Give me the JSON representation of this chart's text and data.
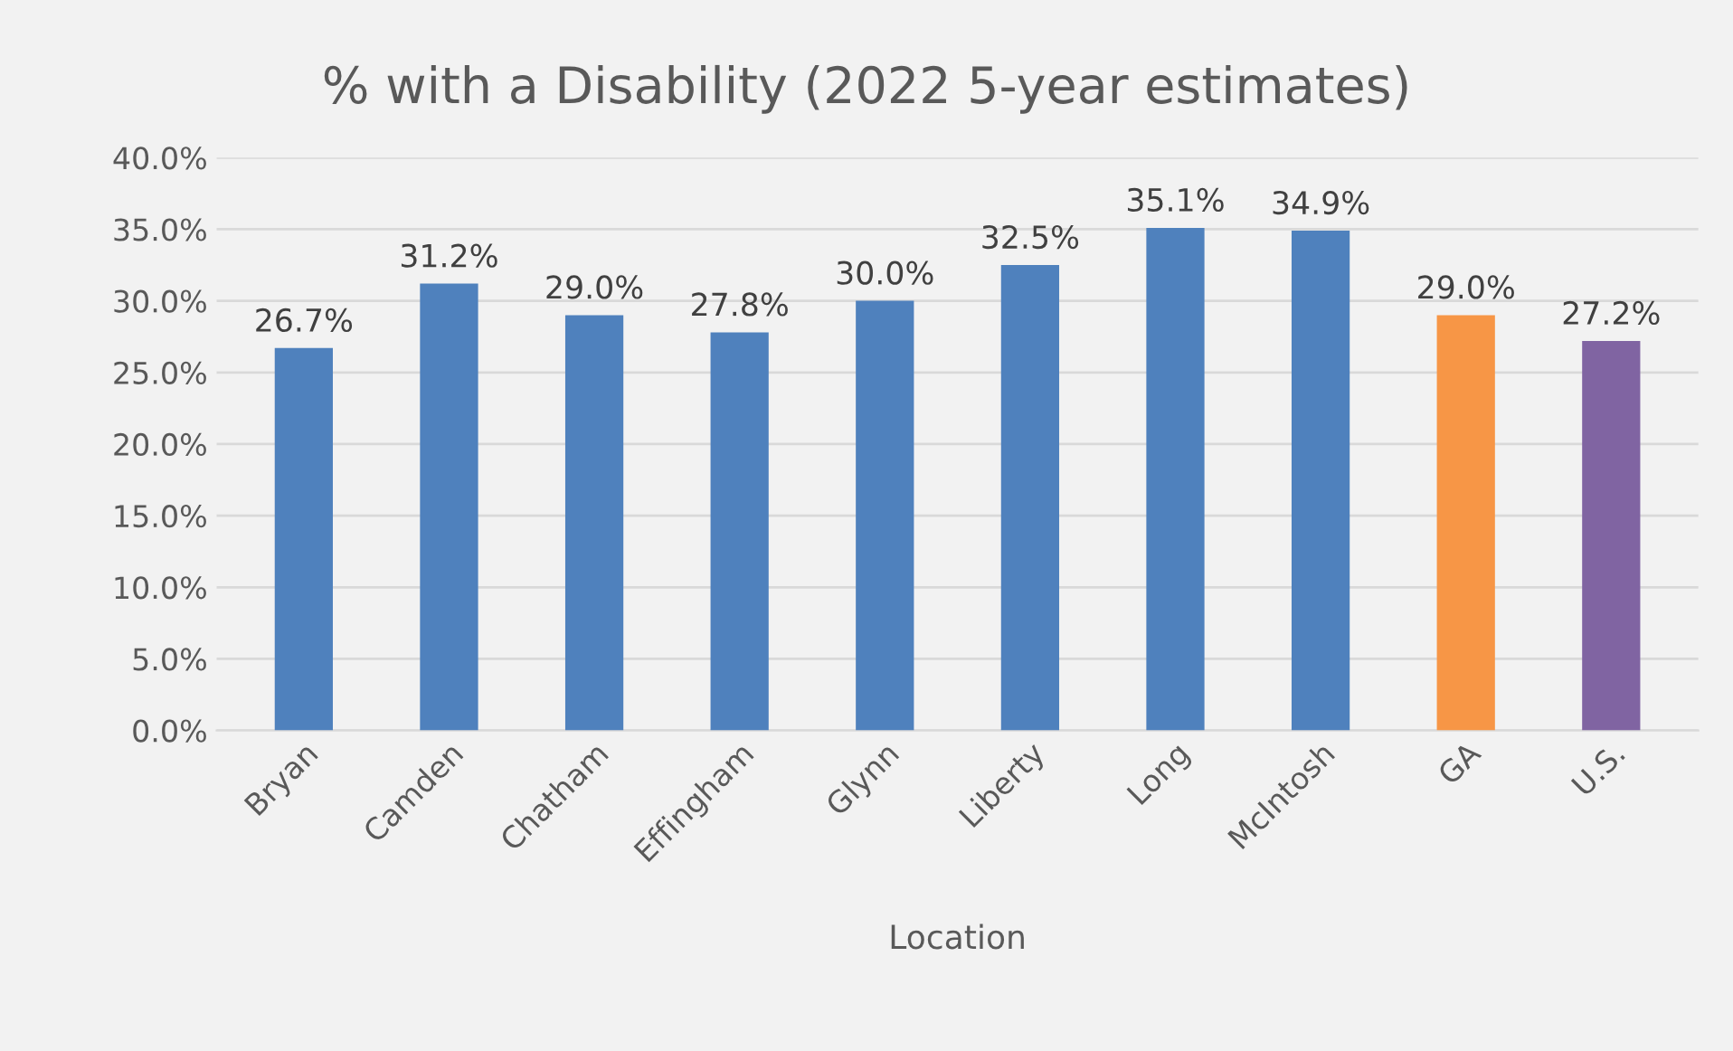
{
  "chart_data": {
    "type": "bar",
    "title": "% with a Disability (2022 5-year estimates)",
    "xlabel": "Location",
    "categories": [
      "Bryan",
      "Camden",
      "Chatham",
      "Effingham",
      "Glynn",
      "Liberty",
      "Long",
      "McIntosh",
      "GA",
      "U.S."
    ],
    "values": [
      26.7,
      31.2,
      29.0,
      27.8,
      30.0,
      32.5,
      35.1,
      34.9,
      29.0,
      27.2
    ],
    "value_labels": [
      "26.7%",
      "31.2%",
      "29.0%",
      "27.8%",
      "30.0%",
      "32.5%",
      "35.1%",
      "34.9%",
      "29.0%",
      "27.2%"
    ],
    "colors": [
      "#4f81bd",
      "#4f81bd",
      "#4f81bd",
      "#4f81bd",
      "#4f81bd",
      "#4f81bd",
      "#4f81bd",
      "#4f81bd",
      "#f79646",
      "#8064a2"
    ],
    "ylim": [
      0,
      40
    ],
    "yticks": [
      {
        "value": 0,
        "label": "0.0%"
      },
      {
        "value": 5,
        "label": "5.0%"
      },
      {
        "value": 10,
        "label": "10.0%"
      },
      {
        "value": 15,
        "label": "15.0%"
      },
      {
        "value": 20,
        "label": "20.0%"
      },
      {
        "value": 25,
        "label": "25.0%"
      },
      {
        "value": 30,
        "label": "30.0%"
      },
      {
        "value": 35,
        "label": "35.0%"
      },
      {
        "value": 40,
        "label": "40.0%"
      }
    ],
    "grid": "y",
    "legend": false
  }
}
